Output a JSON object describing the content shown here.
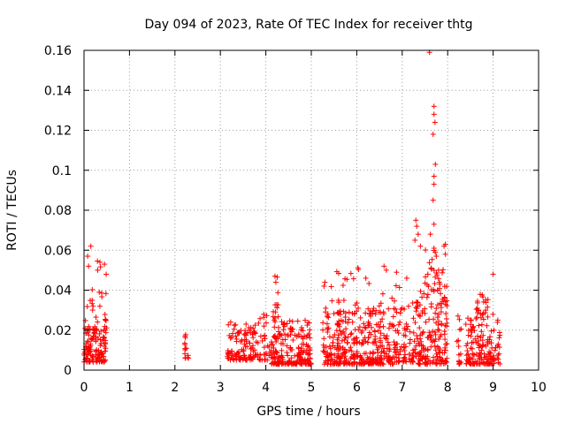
{
  "chart_data": {
    "type": "scatter",
    "title": "Day 094 of 2023, Rate Of TEC Index for receiver thtg",
    "xlabel": "GPS time / hours",
    "ylabel": "ROTI / TECUs",
    "xlim": [
      0,
      10
    ],
    "ylim": [
      0,
      0.16
    ],
    "x_ticks": [
      "0",
      "1",
      "2",
      "3",
      "4",
      "5",
      "6",
      "7",
      "8",
      "9",
      "10"
    ],
    "y_ticks": [
      "0",
      "0.02",
      "0.04",
      "0.06",
      "0.08",
      "0.1",
      "0.12",
      "0.14",
      "0.16"
    ],
    "grid": true,
    "marker": "+",
    "color": "#ff0000",
    "clusters": [
      {
        "x": [
          0.0,
          0.5
        ],
        "y": [
          0.004,
          0.022
        ],
        "n": 120
      },
      {
        "x": [
          0.0,
          0.5
        ],
        "y": [
          0.02,
          0.055
        ],
        "n": 28
      },
      {
        "x": [
          2.2,
          2.3
        ],
        "y": [
          0.006,
          0.02
        ],
        "n": 14
      },
      {
        "x": [
          3.15,
          3.85
        ],
        "y": [
          0.005,
          0.025
        ],
        "n": 110
      },
      {
        "x": [
          3.85,
          4.1
        ],
        "y": [
          0.005,
          0.03
        ],
        "n": 30
      },
      {
        "x": [
          4.1,
          5.0
        ],
        "y": [
          0.003,
          0.025
        ],
        "n": 210
      },
      {
        "x": [
          4.15,
          4.35
        ],
        "y": [
          0.025,
          0.047
        ],
        "n": 12
      },
      {
        "x": [
          5.25,
          6.8
        ],
        "y": [
          0.003,
          0.03
        ],
        "n": 340
      },
      {
        "x": [
          5.3,
          7.0
        ],
        "y": [
          0.028,
          0.052
        ],
        "n": 45
      },
      {
        "x": [
          6.8,
          7.3
        ],
        "y": [
          0.004,
          0.035
        ],
        "n": 80
      },
      {
        "x": [
          7.3,
          8.0
        ],
        "y": [
          0.003,
          0.04
        ],
        "n": 170
      },
      {
        "x": [
          7.5,
          8.0
        ],
        "y": [
          0.04,
          0.063
        ],
        "n": 30
      },
      {
        "x": [
          8.2,
          8.3
        ],
        "y": [
          0.003,
          0.028
        ],
        "n": 16
      },
      {
        "x": [
          8.4,
          9.15
        ],
        "y": [
          0.003,
          0.03
        ],
        "n": 160
      },
      {
        "x": [
          8.6,
          8.9
        ],
        "y": [
          0.03,
          0.04
        ],
        "n": 14
      }
    ],
    "points": [
      [
        0.15,
        0.062
      ],
      [
        0.08,
        0.057
      ],
      [
        0.1,
        0.052
      ],
      [
        0.35,
        0.054
      ],
      [
        0.45,
        0.053
      ],
      [
        0.3,
        0.05
      ],
      [
        7.3,
        0.075
      ],
      [
        7.32,
        0.072
      ],
      [
        7.35,
        0.068
      ],
      [
        7.28,
        0.065
      ],
      [
        7.4,
        0.062
      ],
      [
        7.6,
        0.159
      ],
      [
        7.7,
        0.132
      ],
      [
        7.7,
        0.128
      ],
      [
        7.72,
        0.124
      ],
      [
        7.68,
        0.118
      ],
      [
        7.73,
        0.103
      ],
      [
        7.7,
        0.097
      ],
      [
        7.7,
        0.093
      ],
      [
        7.68,
        0.085
      ],
      [
        7.7,
        0.073
      ],
      [
        7.62,
        0.068
      ],
      [
        7.7,
        0.061
      ],
      [
        7.75,
        0.057
      ],
      [
        7.8,
        0.05
      ],
      [
        7.95,
        0.063
      ],
      [
        7.95,
        0.058
      ],
      [
        9.0,
        0.048
      ],
      [
        5.3,
        0.044
      ],
      [
        5.28,
        0.042
      ],
      [
        6.6,
        0.052
      ],
      [
        6.65,
        0.05
      ],
      [
        6.2,
        0.046
      ],
      [
        7.1,
        0.046
      ],
      [
        4.2,
        0.047
      ],
      [
        4.22,
        0.044
      ]
    ]
  }
}
